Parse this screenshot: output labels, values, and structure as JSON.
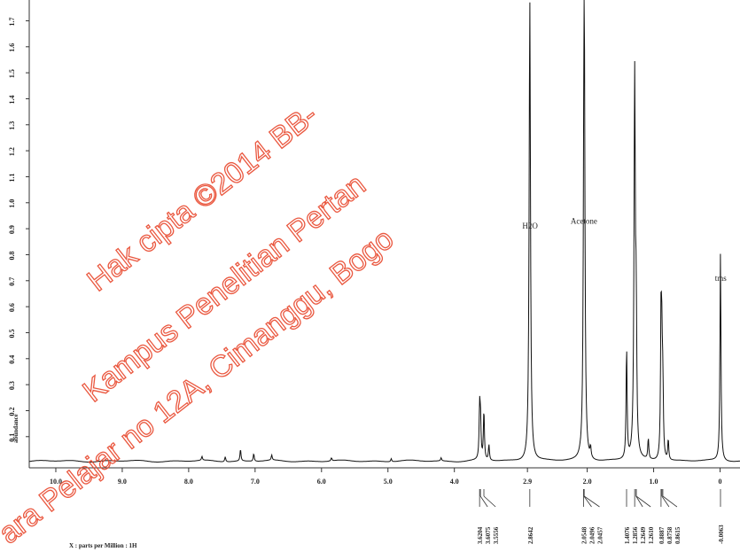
{
  "chart_data": {
    "type": "line",
    "xlabel": "X : parts per Million : 1H",
    "ylabel": "abundance",
    "xlim": [
      10.4,
      -0.3
    ],
    "ylim": [
      -0.02,
      1.78
    ],
    "x_ticks": [
      {
        "value": 10.0,
        "label": "10.0"
      },
      {
        "value": 9.0,
        "label": "9.0"
      },
      {
        "value": 8.0,
        "label": "8.0"
      },
      {
        "value": 7.0,
        "label": "7.0"
      },
      {
        "value": 6.0,
        "label": "6.0"
      },
      {
        "value": 5.0,
        "label": "5.0"
      },
      {
        "value": 4.0,
        "label": "4.0"
      },
      {
        "value": 2.9,
        "label": "2.9"
      },
      {
        "value": 2.0,
        "label": "2.0"
      },
      {
        "value": 1.0,
        "label": "1.0"
      },
      {
        "value": 0.0,
        "label": "0"
      }
    ],
    "y_ticks": [
      {
        "value": 0.1,
        "label": "0.1"
      },
      {
        "value": 0.2,
        "label": "0.2"
      },
      {
        "value": 0.3,
        "label": "0.3"
      },
      {
        "value": 0.4,
        "label": "0.4"
      },
      {
        "value": 0.5,
        "label": "0.5"
      },
      {
        "value": 0.6,
        "label": "0.6"
      },
      {
        "value": 0.7,
        "label": "0.7"
      },
      {
        "value": 0.8,
        "label": "0.8"
      },
      {
        "value": 0.9,
        "label": "0.9"
      },
      {
        "value": 1.0,
        "label": "1.0"
      },
      {
        "value": 1.1,
        "label": "1.1"
      },
      {
        "value": 1.2,
        "label": "1.2"
      },
      {
        "value": 1.3,
        "label": "1.3"
      },
      {
        "value": 1.4,
        "label": "1.4"
      },
      {
        "value": 1.5,
        "label": "1.5"
      },
      {
        "value": 1.6,
        "label": "1.6"
      },
      {
        "value": 1.7,
        "label": "1.7"
      }
    ],
    "peaks": [
      {
        "ppm": 7.8,
        "height": 0.015
      },
      {
        "ppm": 7.45,
        "height": 0.02
      },
      {
        "ppm": 7.22,
        "height": 0.045
      },
      {
        "ppm": 7.02,
        "height": 0.03
      },
      {
        "ppm": 6.75,
        "height": 0.02
      },
      {
        "ppm": 5.85,
        "height": 0.012
      },
      {
        "ppm": 4.95,
        "height": 0.012
      },
      {
        "ppm": 4.2,
        "height": 0.012
      },
      {
        "ppm": 3.6204,
        "height": 0.19
      },
      {
        "ppm": 3.6075,
        "height": 0.15
      },
      {
        "ppm": 3.5556,
        "height": 0.19
      },
      {
        "ppm": 3.48,
        "height": 0.06
      },
      {
        "ppm": 2.8642,
        "height": 1.78
      },
      {
        "ppm": 2.0548,
        "height": 0.14
      },
      {
        "ppm": 2.0496,
        "height": 0.06
      },
      {
        "ppm": 2.0457,
        "height": 1.78
      },
      {
        "ppm": 1.95,
        "height": 0.04
      },
      {
        "ppm": 1.4076,
        "height": 0.43
      },
      {
        "ppm": 1.2856,
        "height": 1.47
      },
      {
        "ppm": 1.2649,
        "height": 0.2
      },
      {
        "ppm": 1.261,
        "height": 0.28
      },
      {
        "ppm": 1.08,
        "height": 0.08
      },
      {
        "ppm": 0.8887,
        "height": 0.55
      },
      {
        "ppm": 0.8758,
        "height": 0.35
      },
      {
        "ppm": 0.8615,
        "height": 0.25
      },
      {
        "ppm": 0.78,
        "height": 0.08
      },
      {
        "ppm": -0.0063,
        "height": 0.8
      }
    ],
    "annotations": [
      {
        "text": "H2O",
        "ppm": 2.86,
        "y": 0.9
      },
      {
        "text": "Acetone",
        "ppm": 2.05,
        "y": 0.92
      },
      {
        "text": "tms",
        "ppm": -0.01,
        "y": 0.7
      }
    ],
    "shift_labels": [
      {
        "text": "3.6204",
        "ppm": 3.6204
      },
      {
        "text": "3.6075",
        "ppm": 3.6075
      },
      {
        "text": "3.5556",
        "ppm": 3.5556
      },
      {
        "text": "2.8642",
        "ppm": 2.8642
      },
      {
        "text": "2.0548",
        "ppm": 2.0548
      },
      {
        "text": "2.0496",
        "ppm": 2.0496
      },
      {
        "text": "2.0457",
        "ppm": 2.0457
      },
      {
        "text": "1.4076",
        "ppm": 1.4076
      },
      {
        "text": "1.2856",
        "ppm": 1.2856
      },
      {
        "text": "1.2649",
        "ppm": 1.2649
      },
      {
        "text": "1.2610",
        "ppm": 1.261
      },
      {
        "text": "0.8887",
        "ppm": 0.8887
      },
      {
        "text": "0.8758",
        "ppm": 0.8758
      },
      {
        "text": "0.8615",
        "ppm": 0.8615
      },
      {
        "text": "-0.0063",
        "ppm": -0.0063
      }
    ],
    "grid": false,
    "line_color": "#111111"
  },
  "watermark": {
    "lines": [
      "Hak cipta ©2014 BB-",
      "Kampus Penelitian Pertan",
      "ara Pelajar no 12A, Cimanggu, Bogo"
    ],
    "color": "#e8472c"
  }
}
